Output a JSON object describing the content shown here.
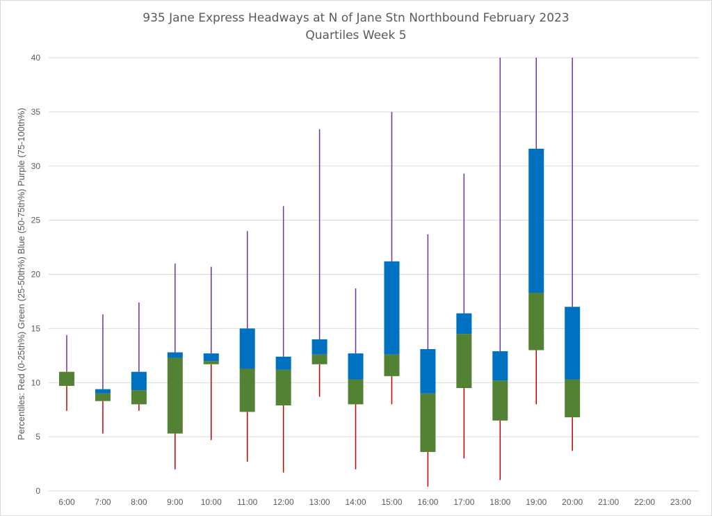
{
  "chart_data": {
    "type": "box",
    "title": "935 Jane Express Headways at N of Jane Stn Northbound February 2023",
    "subtitle": "Quartiles Week 5",
    "ylabel": "Percentiles: Red (0-25th%) Green (25-50th%) Blue (50-75th%) Purple (75-100th%)",
    "xlabel": "",
    "ylim": [
      0,
      40
    ],
    "yticks": [
      "0",
      "5",
      "10",
      "15",
      "20",
      "25",
      "30",
      "35",
      "40"
    ],
    "grid": "horizontal",
    "categories": [
      "6:00",
      "7:00",
      "8:00",
      "9:00",
      "10:00",
      "11:00",
      "12:00",
      "13:00",
      "14:00",
      "15:00",
      "16:00",
      "17:00",
      "18:00",
      "19:00",
      "20:00",
      "21:00",
      "22:00",
      "23:00"
    ],
    "series": [
      {
        "color": "#c00000",
        "values": [
          7.4,
          5.3,
          7.4,
          2.0,
          4.7,
          2.7,
          1.7,
          8.7,
          2.0,
          8.0,
          0.4,
          3.0,
          1.0,
          8.0,
          3.7,
          null,
          null,
          null
        ]
      },
      {
        "color": "#548235",
        "values": [
          9.7,
          8.3,
          8.0,
          5.3,
          11.7,
          7.3,
          7.9,
          11.7,
          8.0,
          10.6,
          3.6,
          9.5,
          6.5,
          13.0,
          6.8,
          null,
          null,
          null
        ]
      },
      {
        "color": "#0070c0",
        "values": [
          11.0,
          9.0,
          9.3,
          12.3,
          12.0,
          11.3,
          11.2,
          12.6,
          10.3,
          12.6,
          9.0,
          14.5,
          10.2,
          18.3,
          10.3,
          null,
          null,
          null
        ]
      },
      {
        "color": "#7030a0",
        "values": [
          11.0,
          9.4,
          11.0,
          12.8,
          12.7,
          15.0,
          12.4,
          14.0,
          12.7,
          21.2,
          13.1,
          16.4,
          12.9,
          31.6,
          17.0,
          null,
          null,
          null
        ]
      },
      {
        "color": "#7030a0",
        "values": [
          14.4,
          16.3,
          17.4,
          21.0,
          20.7,
          24.0,
          26.3,
          33.4,
          18.7,
          35.0,
          23.7,
          29.3,
          40.0,
          40.0,
          40.0,
          null,
          null,
          null
        ]
      }
    ],
    "colors": {
      "whisker_low": "#c00000",
      "box_lower": "#548235",
      "box_upper": "#0070c0",
      "whisker_high": "#7030a0",
      "grid": "#d9d9d9",
      "text": "#595959"
    }
  }
}
